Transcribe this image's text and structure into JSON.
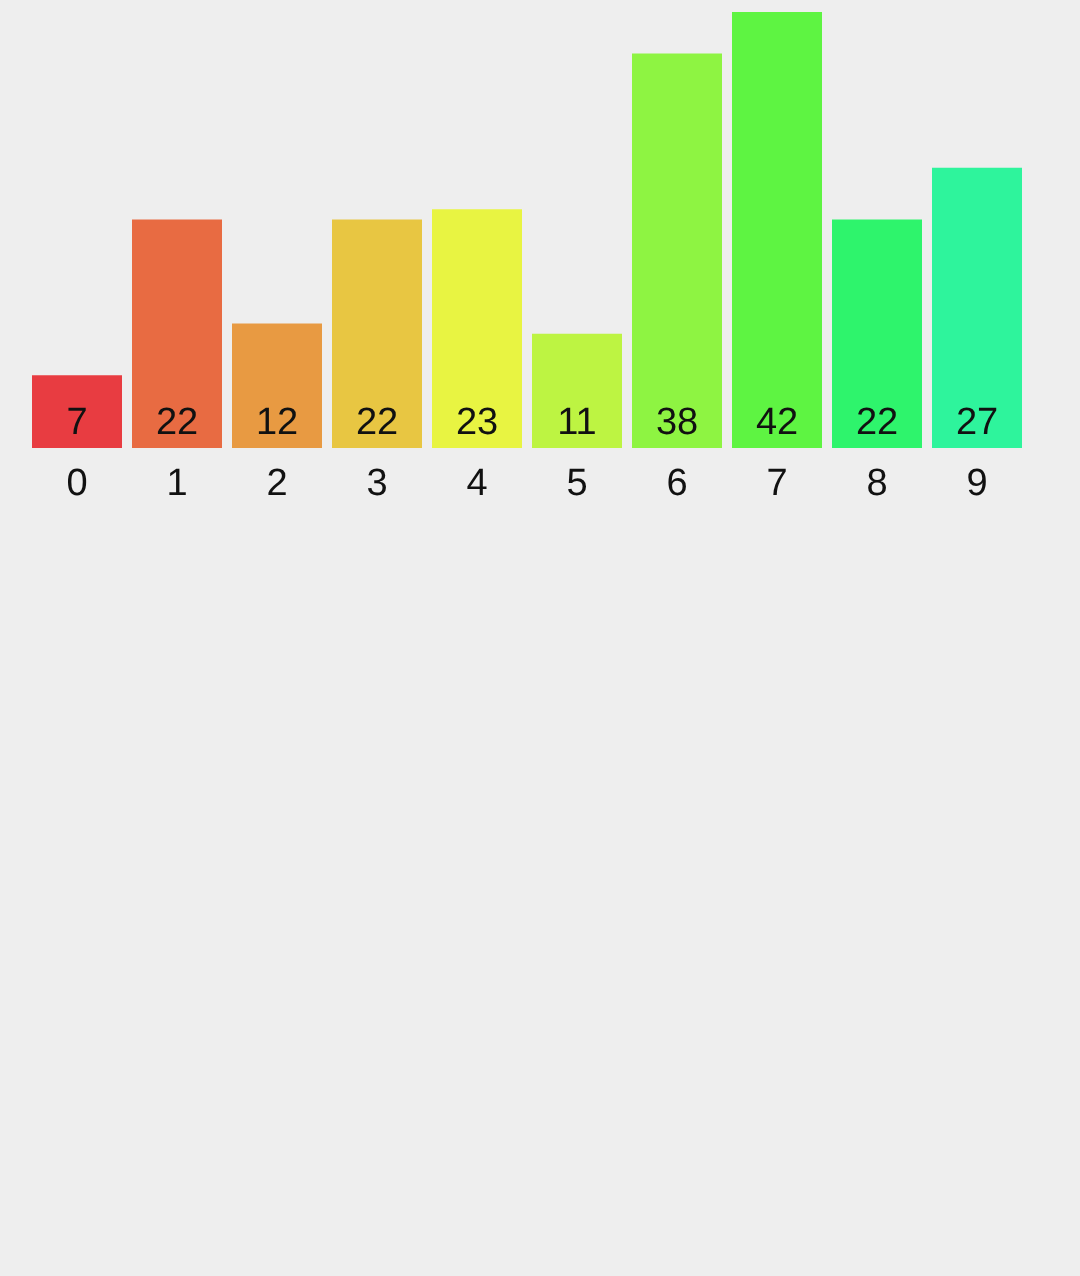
{
  "chart_data": {
    "type": "bar",
    "categories": [
      "0",
      "1",
      "2",
      "3",
      "4",
      "5",
      "6",
      "7",
      "8",
      "9"
    ],
    "values": [
      7,
      22,
      12,
      22,
      23,
      11,
      38,
      42,
      22,
      27
    ],
    "colors": [
      "#e83c41",
      "#e86b42",
      "#e89a42",
      "#e8c642",
      "#e8f442",
      "#bdf442",
      "#8ef442",
      "#5ef442",
      "#2ef46c",
      "#2ef49c"
    ],
    "data_labels": true,
    "tick_labels": "x"
  }
}
